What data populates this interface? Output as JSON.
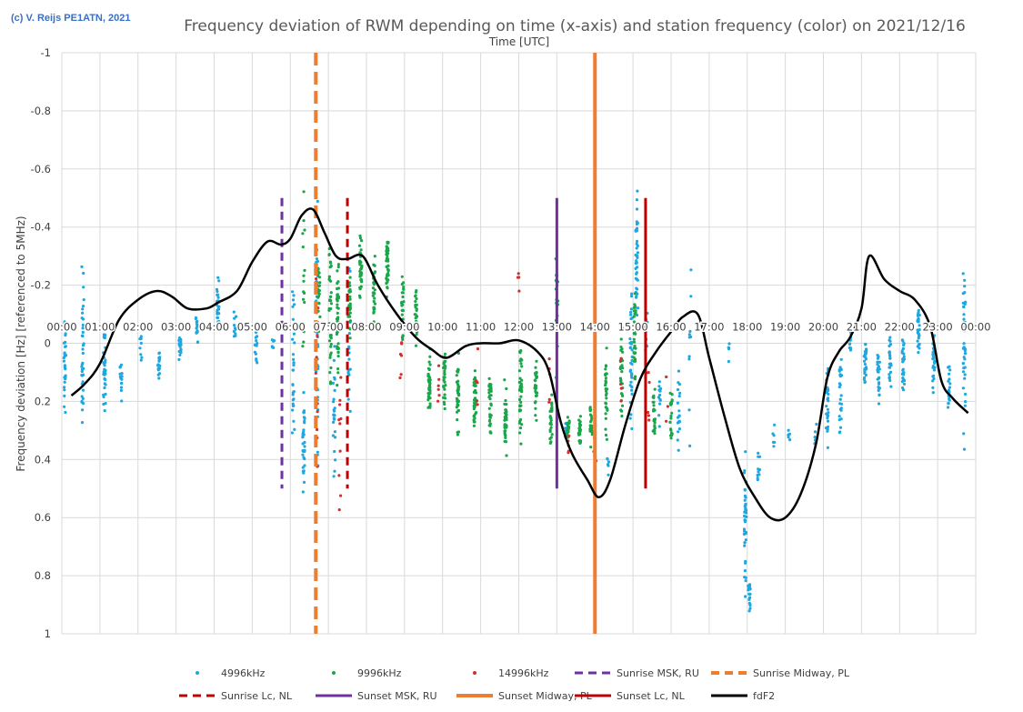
{
  "copyright": "(c) V. Reijs  PE1ATN, 2021",
  "chart_data": {
    "type": "scatter",
    "title": "Frequency deviation of RWM depending on time (x-axis) and station frequency (color) on 2021/12/16",
    "xlabel": "Time [UTC]",
    "ylabel": "Frequency deviation [Hz] [referenced to 5MHz)",
    "xlim": [
      0,
      24
    ],
    "ylim": [
      1,
      -1
    ],
    "x_tick_labels": [
      "00:00",
      "01:00",
      "02:00",
      "03:00",
      "04:00",
      "05:00",
      "06:00",
      "07:00",
      "08:00",
      "09:00",
      "10:00",
      "11:00",
      "12:00",
      "13:00",
      "14:00",
      "15:00",
      "16:00",
      "17:00",
      "18:00",
      "19:00",
      "20:00",
      "21:00",
      "22:00",
      "23:00",
      "00:00"
    ],
    "y_ticks": [
      -1,
      -0.8,
      -0.6,
      -0.4,
      -0.2,
      0,
      0.2,
      0.4,
      0.6,
      0.8,
      1
    ],
    "y_tick_labels": [
      "-1",
      "-0.8",
      "-0.6",
      "-0.4",
      "-0.2",
      "0",
      "0.2",
      "0.4",
      "0.6",
      "0.8",
      "1"
    ],
    "grid": true,
    "legend_position": "bottom",
    "colors": {
      "s4996": "#1ea7e1",
      "s9996": "#1aa64a",
      "s14996": "#d32f2f",
      "sunrise_msk": "#7030a0",
      "sunrise_midway": "#ed7d31",
      "sunrise_lc": "#c00000",
      "sunset_msk": "#7030a0",
      "sunset_midway": "#ed7d31",
      "sunset_lc": "#c00000",
      "fdf2": "#000000"
    },
    "legend": [
      {
        "key": "s4996",
        "label": "4996kHz",
        "style": "dot"
      },
      {
        "key": "s9996",
        "label": "9996kHz",
        "style": "dot"
      },
      {
        "key": "s14996",
        "label": "14996kHz",
        "style": "dot"
      },
      {
        "key": "sunrise_msk",
        "label": "Sunrise MSK, RU",
        "style": "dash"
      },
      {
        "key": "sunrise_midway",
        "label": "Sunrise Midway, PL",
        "style": "dash"
      },
      {
        "key": "sunrise_lc",
        "label": "Sunrise Lc, NL",
        "style": "dash"
      },
      {
        "key": "sunset_msk",
        "label": "Sunset MSK, RU",
        "style": "solid"
      },
      {
        "key": "sunset_midway",
        "label": "Sunset Midway, PL",
        "style": "solid"
      },
      {
        "key": "sunset_lc",
        "label": "Sunset Lc, NL",
        "style": "solid"
      },
      {
        "key": "fdf2",
        "label": "fdF2",
        "style": "solid"
      }
    ],
    "vertical_lines": [
      {
        "key": "sunrise_msk",
        "x": 5.78,
        "y1": -0.5,
        "y2": 0.5,
        "dash": true,
        "width": 3
      },
      {
        "key": "sunrise_midway",
        "x": 6.67,
        "y1": -1.0,
        "y2": 1.0,
        "dash": true,
        "width": 4
      },
      {
        "key": "sunrise_lc",
        "x": 7.5,
        "y1": -0.5,
        "y2": 0.5,
        "dash": true,
        "width": 3
      },
      {
        "key": "sunset_msk",
        "x": 13.0,
        "y1": -0.5,
        "y2": 0.5,
        "dash": false,
        "width": 3
      },
      {
        "key": "sunset_midway",
        "x": 14.0,
        "y1": -1.0,
        "y2": 1.0,
        "dash": false,
        "width": 4
      },
      {
        "key": "sunset_lc",
        "x": 15.33,
        "y1": -0.5,
        "y2": 0.5,
        "dash": false,
        "width": 3
      }
    ],
    "fdF2": {
      "x": [
        0.25,
        0.6,
        1.0,
        1.5,
        2.0,
        2.5,
        2.9,
        3.3,
        3.8,
        4.1,
        4.6,
        5.0,
        5.4,
        5.75,
        6.0,
        6.3,
        6.6,
        6.9,
        7.2,
        7.5,
        7.9,
        8.3,
        8.8,
        9.3,
        9.7,
        10.1,
        10.6,
        11.0,
        11.5,
        12.0,
        12.5,
        12.8,
        13.1,
        13.4,
        13.8,
        14.1,
        14.4,
        14.8,
        15.2,
        15.6,
        16.0,
        16.3,
        16.7,
        17.0,
        17.4,
        17.8,
        18.2,
        18.6,
        19.0,
        19.4,
        19.8,
        20.1,
        20.4,
        20.7,
        21.0,
        21.2,
        21.6,
        22.0,
        22.4,
        22.8,
        23.1,
        23.4,
        23.8
      ],
      "y": [
        0.18,
        0.14,
        0.07,
        -0.08,
        -0.15,
        -0.18,
        -0.16,
        -0.12,
        -0.12,
        -0.14,
        -0.18,
        -0.28,
        -0.35,
        -0.34,
        -0.36,
        -0.44,
        -0.46,
        -0.38,
        -0.3,
        -0.29,
        -0.3,
        -0.2,
        -0.1,
        -0.02,
        0.02,
        0.05,
        0.01,
        0.0,
        0.0,
        -0.01,
        0.03,
        0.1,
        0.27,
        0.38,
        0.47,
        0.53,
        0.47,
        0.28,
        0.12,
        0.03,
        -0.04,
        -0.09,
        -0.1,
        0.05,
        0.25,
        0.43,
        0.53,
        0.6,
        0.6,
        0.52,
        0.35,
        0.12,
        0.03,
        -0.02,
        -0.12,
        -0.3,
        -0.22,
        -0.18,
        -0.15,
        -0.06,
        0.13,
        0.19,
        0.24
      ]
    },
    "series": [
      {
        "key": "s4996",
        "name": "4996kHz",
        "clusters": [
          [
            0.08,
            0.05,
            0.12,
            30
          ],
          [
            0.55,
            0.02,
            0.18,
            40
          ],
          [
            1.12,
            0.1,
            0.09,
            35
          ],
          [
            1.55,
            0.12,
            0.06,
            15
          ],
          [
            2.08,
            0.02,
            0.04,
            8
          ],
          [
            2.55,
            0.07,
            0.03,
            20
          ],
          [
            3.1,
            0.0,
            0.04,
            20
          ],
          [
            3.55,
            -0.05,
            0.05,
            15
          ],
          [
            4.1,
            -0.12,
            0.06,
            30
          ],
          [
            4.55,
            -0.05,
            0.04,
            10
          ],
          [
            5.1,
            0.0,
            0.05,
            12
          ],
          [
            5.55,
            0.0,
            0.03,
            6
          ],
          [
            6.08,
            0.08,
            0.2,
            30
          ],
          [
            6.35,
            0.35,
            0.1,
            35
          ],
          [
            6.7,
            0.02,
            0.3,
            45
          ],
          [
            7.15,
            0.25,
            0.15,
            25
          ],
          [
            7.55,
            0.05,
            0.2,
            18
          ],
          [
            14.95,
            0.05,
            0.15,
            35
          ],
          [
            15.1,
            -0.3,
            0.15,
            40
          ],
          [
            15.7,
            0.2,
            0.06,
            12
          ],
          [
            16.2,
            0.25,
            0.12,
            20
          ],
          [
            16.5,
            0.05,
            0.2,
            10
          ],
          [
            17.5,
            0.0,
            0.05,
            5
          ],
          [
            17.95,
            0.6,
            0.15,
            40
          ],
          [
            18.05,
            0.87,
            0.04,
            20
          ],
          [
            18.3,
            0.42,
            0.06,
            10
          ],
          [
            18.7,
            0.32,
            0.03,
            6
          ],
          [
            19.1,
            0.3,
            0.03,
            6
          ],
          [
            19.8,
            0.3,
            0.05,
            6
          ],
          [
            20.1,
            0.2,
            0.1,
            30
          ],
          [
            20.45,
            0.15,
            0.1,
            25
          ],
          [
            20.7,
            0.0,
            0.05,
            10
          ],
          [
            21.1,
            0.05,
            0.06,
            30
          ],
          [
            21.45,
            0.12,
            0.08,
            25
          ],
          [
            21.75,
            0.05,
            0.07,
            25
          ],
          [
            22.1,
            0.08,
            0.07,
            30
          ],
          [
            22.5,
            -0.05,
            0.06,
            30
          ],
          [
            22.9,
            0.05,
            0.08,
            30
          ],
          [
            23.3,
            0.15,
            0.06,
            20
          ],
          [
            23.7,
            0.0,
            0.2,
            40
          ],
          [
            13.25,
            0.3,
            0.04,
            15
          ],
          [
            14.35,
            0.4,
            0.03,
            6
          ],
          [
            15.35,
            0.0,
            0.1,
            15
          ]
        ]
      },
      {
        "key": "s9996",
        "name": "9996kHz",
        "clusters": [
          [
            6.75,
            -0.15,
            0.1,
            25
          ],
          [
            7.05,
            -0.1,
            0.15,
            40
          ],
          [
            7.25,
            -0.08,
            0.15,
            40
          ],
          [
            7.55,
            -0.12,
            0.08,
            30
          ],
          [
            7.85,
            -0.25,
            0.1,
            40
          ],
          [
            8.2,
            -0.18,
            0.08,
            30
          ],
          [
            8.55,
            -0.28,
            0.08,
            40
          ],
          [
            8.95,
            -0.12,
            0.08,
            30
          ],
          [
            9.3,
            -0.1,
            0.07,
            30
          ],
          [
            9.65,
            0.15,
            0.08,
            40
          ],
          [
            10.05,
            0.12,
            0.08,
            30
          ],
          [
            10.4,
            0.18,
            0.08,
            40
          ],
          [
            10.85,
            0.2,
            0.08,
            40
          ],
          [
            11.25,
            0.22,
            0.08,
            35
          ],
          [
            11.65,
            0.25,
            0.08,
            40
          ],
          [
            12.05,
            0.18,
            0.1,
            40
          ],
          [
            12.45,
            0.15,
            0.07,
            30
          ],
          [
            12.85,
            0.25,
            0.06,
            25
          ],
          [
            13.3,
            0.3,
            0.03,
            20
          ],
          [
            13.6,
            0.3,
            0.04,
            25
          ],
          [
            13.9,
            0.28,
            0.05,
            25
          ],
          [
            14.3,
            0.2,
            0.1,
            30
          ],
          [
            14.7,
            0.1,
            0.1,
            30
          ],
          [
            15.05,
            0.0,
            0.12,
            35
          ],
          [
            15.55,
            0.25,
            0.08,
            25
          ],
          [
            16.0,
            0.25,
            0.07,
            20
          ],
          [
            6.35,
            -0.2,
            0.2,
            15
          ],
          [
            13.0,
            -0.1,
            0.15,
            15
          ]
        ]
      },
      {
        "key": "s14996",
        "name": "14996kHz",
        "clusters": [
          [
            6.7,
            0.15,
            0.25,
            12
          ],
          [
            7.3,
            0.3,
            0.2,
            10
          ],
          [
            8.9,
            0.05,
            0.1,
            6
          ],
          [
            9.9,
            0.15,
            0.1,
            6
          ],
          [
            10.9,
            0.1,
            0.15,
            6
          ],
          [
            12.0,
            -0.22,
            0.05,
            4
          ],
          [
            12.8,
            0.15,
            0.1,
            5
          ],
          [
            13.3,
            0.35,
            0.05,
            5
          ],
          [
            14.0,
            0.3,
            0.08,
            6
          ],
          [
            14.7,
            0.05,
            0.1,
            5
          ],
          [
            15.4,
            0.2,
            0.1,
            5
          ],
          [
            15.9,
            0.1,
            0.1,
            4
          ]
        ]
      }
    ]
  }
}
